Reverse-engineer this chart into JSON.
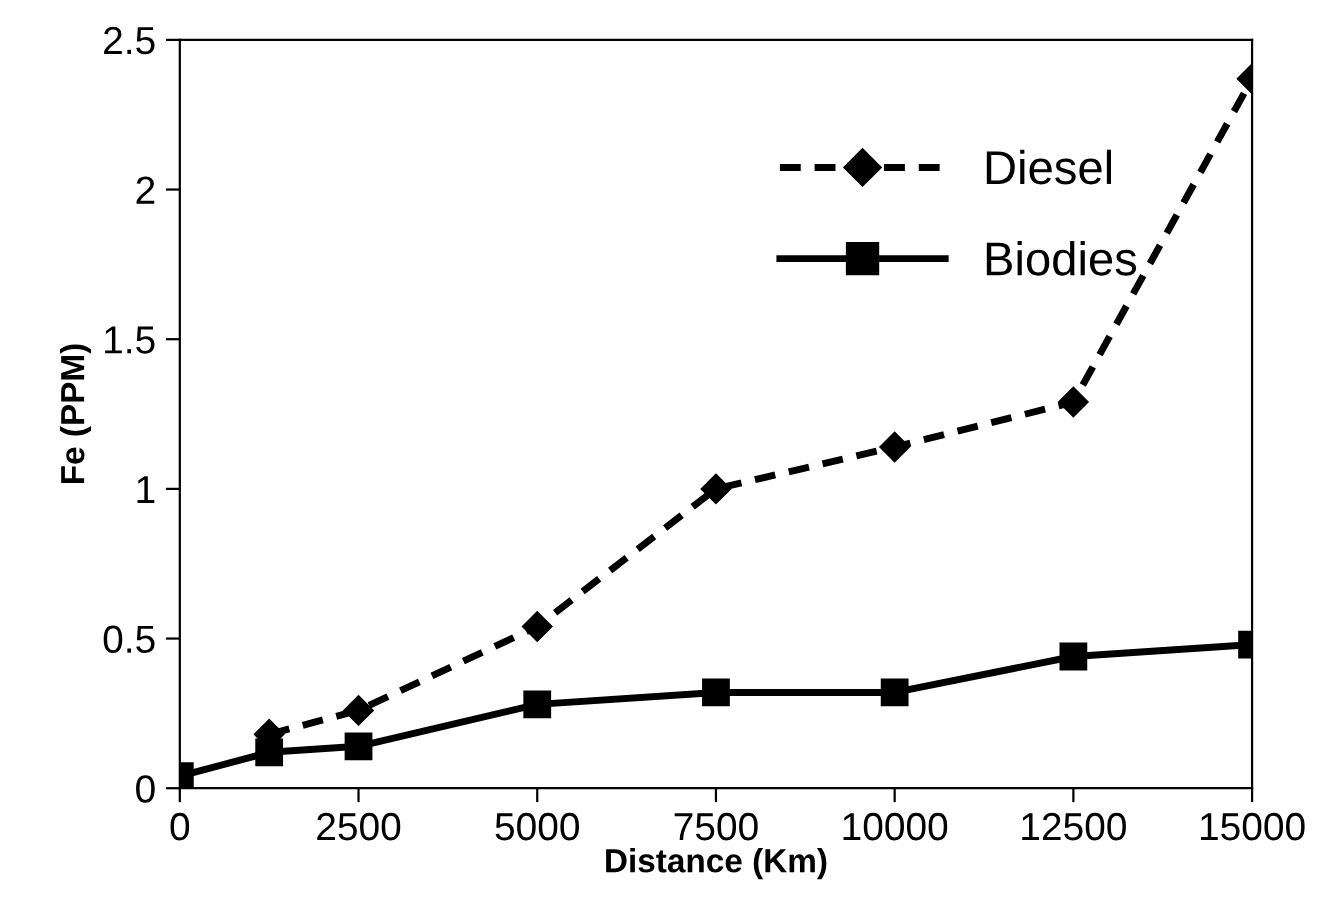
{
  "chart_data": {
    "type": "line",
    "xlabel": "Distance (Km)",
    "ylabel": "Fe (PPM)",
    "xlim": [
      0,
      15000
    ],
    "xticks": [
      0,
      2500,
      5000,
      7500,
      10000,
      12500,
      15000
    ],
    "ylim": [
      0,
      2.5
    ],
    "yticks": [
      0,
      0.5,
      1,
      1.5,
      2,
      2.5
    ],
    "grid": false,
    "legend": "top right",
    "series": [
      {
        "name": "Diesel",
        "color": "#000000",
        "marker": "diamond",
        "line_style": "dashed",
        "x": [
          1250,
          2500,
          5000,
          7500,
          10000,
          12500,
          15000
        ],
        "values": [
          0.18,
          0.26,
          0.54,
          1.0,
          1.14,
          1.29,
          2.37
        ]
      },
      {
        "name": "Biodies",
        "color": "#000000",
        "marker": "square",
        "line_style": "solid",
        "x": [
          0,
          1250,
          2500,
          5000,
          7500,
          10000,
          12500,
          15000
        ],
        "values": [
          0.04,
          0.12,
          0.14,
          0.28,
          0.32,
          0.32,
          0.44,
          0.48
        ]
      }
    ]
  }
}
